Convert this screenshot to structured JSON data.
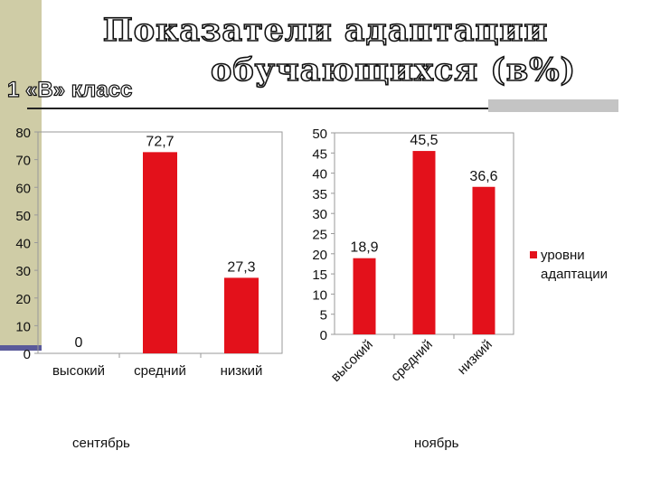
{
  "title_line1": "Показатели адаптации",
  "title_line2": "обучающихся (в%)",
  "class_label": "1 «В» класс",
  "chart_data": [
    {
      "type": "bar",
      "categories": [
        "высокий",
        "средний",
        "низкий"
      ],
      "values": [
        0,
        72.7,
        27.3
      ],
      "value_labels": [
        "0",
        "72,7",
        "27,3"
      ],
      "ylim": [
        0,
        80
      ],
      "yticks": [
        0,
        10,
        20,
        30,
        40,
        50,
        60,
        70,
        80
      ],
      "grid": false,
      "color": "#e3111b",
      "xlabel": "сентябрь"
    },
    {
      "type": "bar",
      "categories": [
        "высокий",
        "средний",
        "низкий"
      ],
      "values": [
        18.9,
        45.5,
        36.6
      ],
      "value_labels": [
        "18,9",
        "45,5",
        "36,6"
      ],
      "ylim": [
        0,
        50
      ],
      "yticks": [
        0,
        5,
        10,
        15,
        20,
        25,
        30,
        35,
        40,
        45,
        50
      ],
      "grid": false,
      "color": "#e3111b",
      "xlabel": "ноябрь",
      "legend": {
        "position": "right",
        "label": "уровни адаптации"
      }
    }
  ]
}
